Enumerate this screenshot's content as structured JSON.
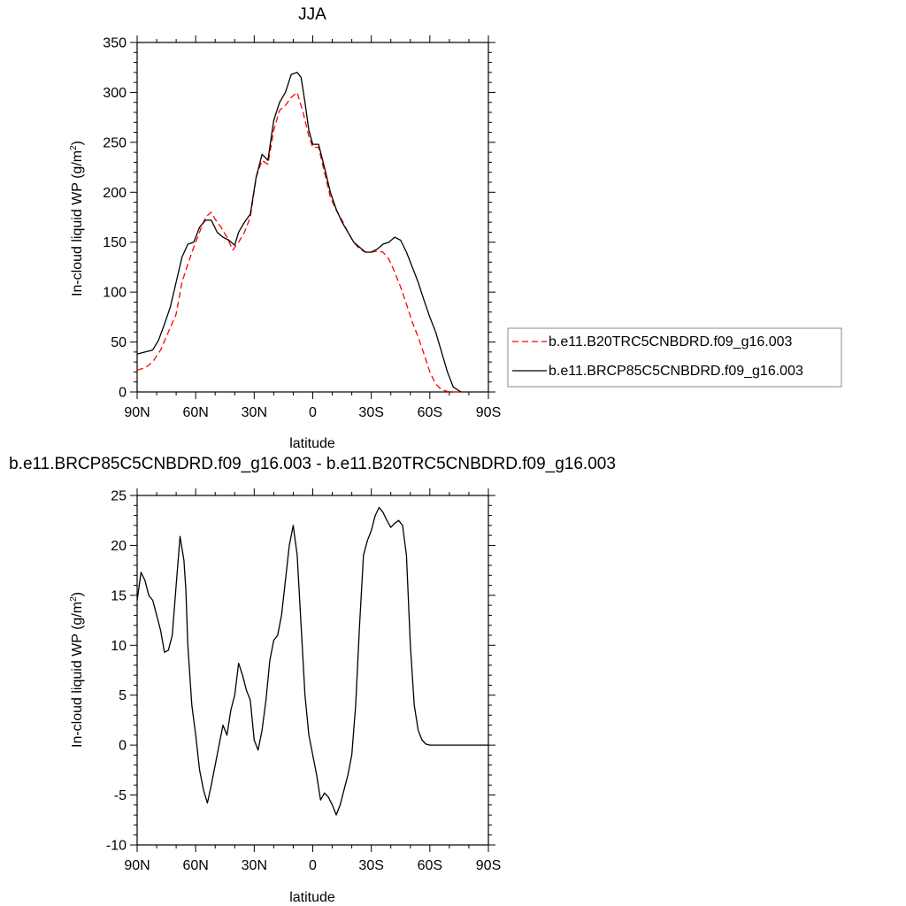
{
  "chart_data": [
    {
      "type": "line",
      "title": "JJA",
      "xlabel": "latitude",
      "ylabel": "In-cloud liquid WP (g/m",
      "ylabel_sup": "2",
      "ylabel_close": ")",
      "xlim": [
        90,
        -90
      ],
      "ylim": [
        0,
        350
      ],
      "yticks": [
        0,
        50,
        100,
        150,
        200,
        250,
        300,
        350
      ],
      "xticks": [
        {
          "value": 90,
          "label": "90N"
        },
        {
          "value": 60,
          "label": "60N"
        },
        {
          "value": 30,
          "label": "30N"
        },
        {
          "value": 0,
          "label": "0"
        },
        {
          "value": -30,
          "label": "30S"
        },
        {
          "value": -60,
          "label": "60S"
        },
        {
          "value": -90,
          "label": "90S"
        }
      ],
      "legend_position": "right",
      "series": [
        {
          "name": "b.e11.B20TRC5CNBDRD.f09_g16.003",
          "color": "#ff0000",
          "dash": "dashed",
          "x": [
            90,
            86,
            82,
            78,
            74,
            70,
            67,
            64,
            61,
            58,
            55,
            52,
            50,
            47,
            44,
            41,
            38,
            35,
            32,
            29,
            26,
            23,
            20,
            17,
            14,
            11,
            8,
            5,
            2,
            0,
            -3,
            -6,
            -9,
            -12,
            -15,
            -18,
            -21,
            -24,
            -27,
            -30,
            -33,
            -36,
            -39,
            -42,
            -45,
            -48,
            -51,
            -54,
            -57,
            -60,
            -63,
            -66,
            -69,
            -72,
            -76
          ],
          "y": [
            22,
            24,
            30,
            42,
            60,
            78,
            110,
            128,
            145,
            160,
            175,
            180,
            173,
            165,
            155,
            142,
            150,
            160,
            175,
            215,
            232,
            228,
            262,
            282,
            287,
            295,
            300,
            280,
            256,
            245,
            245,
            220,
            195,
            182,
            172,
            160,
            150,
            143,
            140,
            140,
            141,
            140,
            133,
            120,
            105,
            88,
            70,
            55,
            38,
            20,
            8,
            2,
            0.5,
            0,
            0
          ]
        },
        {
          "name": "b.e11.BRCP85C5CNBDRD.f09_g16.003",
          "color": "#000000",
          "dash": "solid",
          "x": [
            90,
            86,
            82,
            79,
            76,
            73,
            70,
            67,
            64,
            61,
            58,
            55,
            52,
            49,
            46,
            43,
            40,
            38,
            35,
            32,
            29,
            26,
            23,
            20,
            17,
            14,
            11,
            8,
            6,
            4,
            2,
            0,
            -3,
            -6,
            -9,
            -12,
            -15,
            -18,
            -21,
            -24,
            -27,
            -30,
            -33,
            -36,
            -39,
            -42,
            -45,
            -48,
            -51,
            -54,
            -57,
            -60,
            -63,
            -66,
            -69,
            -72,
            -76
          ],
          "y": [
            38,
            40,
            42,
            52,
            68,
            85,
            110,
            135,
            148,
            150,
            165,
            172,
            172,
            160,
            155,
            152,
            147,
            160,
            170,
            178,
            215,
            238,
            232,
            272,
            290,
            300,
            318,
            320,
            315,
            290,
            262,
            248,
            248,
            225,
            200,
            183,
            170,
            160,
            150,
            145,
            140,
            140,
            143,
            148,
            150,
            155,
            152,
            140,
            125,
            110,
            92,
            75,
            60,
            40,
            20,
            5,
            0
          ]
        }
      ]
    },
    {
      "type": "line",
      "title": "b.e11.BRCP85C5CNBDRD.f09_g16.003 - b.e11.B20TRC5CNBDRD.f09_g16.003",
      "xlabel": "latitude",
      "ylabel": "In-cloud liquid WP (g/m",
      "ylabel_sup": "2",
      "ylabel_close": ")",
      "xlim": [
        90,
        -90
      ],
      "ylim": [
        -10,
        25
      ],
      "yticks": [
        -10,
        -5,
        0,
        5,
        10,
        15,
        20,
        25
      ],
      "xticks": [
        {
          "value": 90,
          "label": "90N"
        },
        {
          "value": 60,
          "label": "60N"
        },
        {
          "value": 30,
          "label": "30N"
        },
        {
          "value": 0,
          "label": "0"
        },
        {
          "value": -30,
          "label": "30S"
        },
        {
          "value": -60,
          "label": "60S"
        },
        {
          "value": -90,
          "label": "90S"
        }
      ],
      "series": [
        {
          "color": "#000000",
          "dash": "solid",
          "x": [
            90,
            88,
            86,
            84,
            82,
            80,
            78,
            76,
            74,
            72,
            70,
            68,
            66,
            65,
            64,
            62,
            60,
            58,
            56,
            54,
            52,
            50,
            48,
            46,
            44,
            42,
            40,
            38,
            36,
            34,
            32,
            30,
            28,
            26,
            24,
            22,
            20,
            18,
            16,
            14,
            12,
            10,
            8,
            6,
            4,
            2,
            0,
            -2,
            -4,
            -6,
            -8,
            -10,
            -12,
            -14,
            -16,
            -18,
            -20,
            -22,
            -24,
            -26,
            -28,
            -30,
            -32,
            -34,
            -36,
            -38,
            -40,
            -42,
            -44,
            -46,
            -48,
            -50,
            -52,
            -54,
            -56,
            -58,
            -60,
            -62,
            -64,
            -66,
            -68,
            -70,
            -72,
            -74,
            -76,
            -80,
            -90
          ],
          "y": [
            14.5,
            17.3,
            16.5,
            15,
            14.5,
            13,
            11.5,
            9.3,
            9.5,
            11,
            16,
            20.9,
            18.5,
            15.5,
            10,
            4,
            1,
            -2.5,
            -4.5,
            -5.8,
            -4,
            -2,
            0,
            2,
            1,
            3.5,
            5,
            8.2,
            7,
            5.5,
            4.5,
            0.5,
            -0.5,
            1.5,
            4.5,
            8.5,
            10.5,
            11,
            13,
            16.5,
            20,
            22,
            19,
            12,
            5,
            1,
            -1,
            -3,
            -5.5,
            -4.8,
            -5.2,
            -6,
            -7,
            -6,
            -4.5,
            -3,
            -1,
            4,
            12,
            19,
            20.5,
            21.5,
            23,
            23.8,
            23.3,
            22.5,
            21.8,
            22.2,
            22.5,
            22,
            19,
            10,
            4,
            1.5,
            0.5,
            0.1,
            0,
            0,
            0,
            0,
            0,
            0,
            0,
            0,
            0,
            0,
            0
          ]
        }
      ]
    }
  ]
}
